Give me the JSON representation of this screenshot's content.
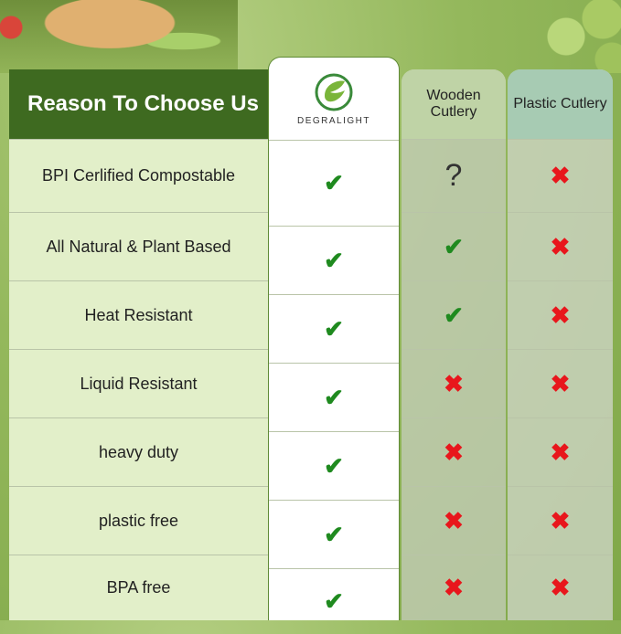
{
  "header": {
    "title": "Reason To Choose Us",
    "brand": "DEGRALIGHT",
    "col_wood": "Wooden Cutlery",
    "col_plastic": "Plastic Cutlery"
  },
  "rows": [
    {
      "label": "BPI Cerlified Compostable",
      "brand": "check",
      "wood": "?",
      "plastic": "cross"
    },
    {
      "label": "All Natural & Plant Based",
      "brand": "check",
      "wood": "check",
      "plastic": "cross"
    },
    {
      "label": "Heat Resistant",
      "brand": "check",
      "wood": "check",
      "plastic": "cross"
    },
    {
      "label": "Liquid Resistant",
      "brand": "check",
      "wood": "cross",
      "plastic": "cross"
    },
    {
      "label": "heavy duty",
      "brand": "check",
      "wood": "cross",
      "plastic": "cross"
    },
    {
      "label": "plastic free",
      "brand": "check",
      "wood": "cross",
      "plastic": "cross"
    },
    {
      "label": "BPA free",
      "brand": "check",
      "wood": "cross",
      "plastic": "cross"
    }
  ],
  "colors": {
    "header": "#3e6a20",
    "check": "#1f8a1f",
    "cross": "#e8161c"
  }
}
